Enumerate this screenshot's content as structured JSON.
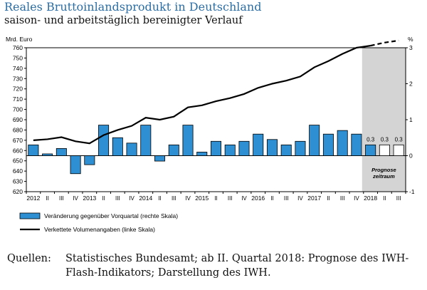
{
  "header": {
    "title": "Reales Bruttoinlandsprodukt in Deutschland",
    "subtitle": "saison- und arbeitstäglich bereinigter Verlauf"
  },
  "chart_data": {
    "type": "bar+line",
    "left_axis_unit": "Mrd. Euro",
    "right_axis_unit": "%",
    "left_ylim": [
      620,
      760
    ],
    "left_ticks": [
      620,
      630,
      640,
      650,
      660,
      670,
      680,
      690,
      700,
      710,
      720,
      730,
      740,
      750,
      760
    ],
    "right_ylim": [
      -1,
      3
    ],
    "right_ticks": [
      -1,
      0,
      1,
      2,
      3
    ],
    "quarter_labels": [
      "I",
      "II",
      "III",
      "IV",
      "I",
      "II",
      "III",
      "IV",
      "I",
      "II",
      "III",
      "IV",
      "I",
      "II",
      "III",
      "IV",
      "I",
      "II",
      "III",
      "IV",
      "I",
      "II",
      "III",
      "IV",
      "I",
      "II",
      "III"
    ],
    "year_labels": [
      {
        "label": "2012",
        "index": 0
      },
      {
        "label": "2013",
        "index": 4
      },
      {
        "label": "2014",
        "index": 8
      },
      {
        "label": "2015",
        "index": 12
      },
      {
        "label": "2016",
        "index": 16
      },
      {
        "label": "2017",
        "index": 20
      },
      {
        "label": "2018",
        "index": 24
      }
    ],
    "series": [
      {
        "name": "Veränderung gegenüber Vorquartal (rechte Skala)",
        "axis": "right",
        "color": "#2e8fd3",
        "values": [
          0.3,
          0.05,
          0.2,
          -0.5,
          -0.25,
          0.85,
          0.5,
          0.35,
          0.85,
          -0.15,
          0.3,
          0.85,
          0.1,
          0.4,
          0.3,
          0.4,
          0.6,
          0.45,
          0.3,
          0.4,
          0.85,
          0.6,
          0.7,
          0.6,
          0.3,
          0.3,
          0.3
        ],
        "forecast_from_index": 25
      },
      {
        "name": "Verkettete Volumenangaben (linke Skala)",
        "axis": "left",
        "color": "#000000",
        "values": [
          670,
          671,
          673,
          669,
          667,
          675,
          680,
          684,
          692,
          690,
          693,
          702,
          704,
          708,
          711,
          715,
          721,
          725,
          728,
          732,
          741,
          747,
          754,
          760,
          762,
          765,
          767
        ],
        "forecast_from_index": 24
      }
    ],
    "data_labels": [
      {
        "index": 24,
        "text": "0.3"
      },
      {
        "index": 25,
        "text": "0.3"
      },
      {
        "index": 26,
        "text": "0.3"
      }
    ],
    "forecast_label": [
      "Prognose",
      "zeitraum"
    ]
  },
  "source": {
    "label": "Quellen:",
    "text": "Statistisches Bundesamt; ab II. Quartal 2018: Prognose des IWH-Flash-Indikators; Darstellung des IWH."
  },
  "colors": {
    "title": "#2c6ea4",
    "bar": "#2e8fd3",
    "forecast_band": "#d4d4d4"
  }
}
